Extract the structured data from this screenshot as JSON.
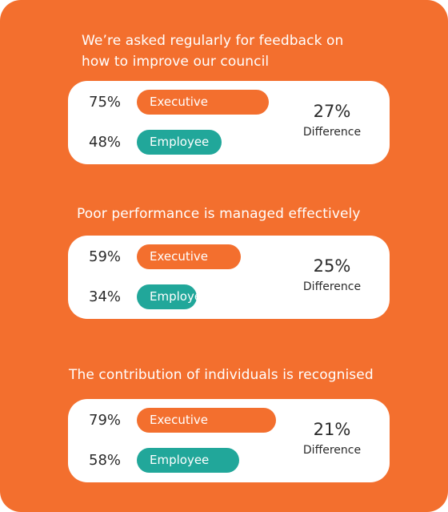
{
  "chart_data": {
    "type": "bar",
    "series_names": [
      "Executive",
      "Employee"
    ],
    "difference_label": "Difference",
    "groups": [
      {
        "question": "We’re asked regularly for feedback on how to improve our council",
        "executive": 75,
        "employee": 48,
        "difference": 27,
        "executive_label": "75%",
        "employee_label": "48%",
        "difference_text": "27%"
      },
      {
        "question": "Poor performance is managed effectively",
        "executive": 59,
        "employee": 34,
        "difference": 25,
        "executive_label": "59%",
        "employee_label": "34%",
        "difference_text": "25%"
      },
      {
        "question": "The contribution of individuals is recognised",
        "executive": 79,
        "employee": 58,
        "difference": 21,
        "executive_label": "79%",
        "employee_label": "58%",
        "difference_text": "21%"
      }
    ],
    "colors": {
      "background": "#f36f2e",
      "executive": "#f36f2e",
      "employee": "#21a79a",
      "card": "#ffffff"
    }
  }
}
